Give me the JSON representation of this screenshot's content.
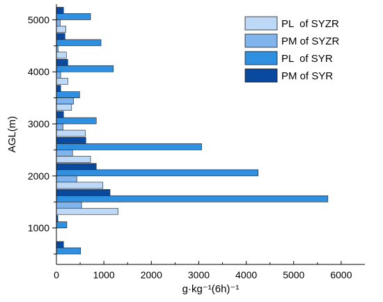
{
  "chart_data": {
    "type": "bar",
    "orientation": "horizontal",
    "xlabel": "g·kg⁻¹(6h)⁻¹",
    "ylabel": "AGL(m)",
    "xlim": [
      0,
      6500
    ],
    "ylim": [
      300,
      5300
    ],
    "xticks": [
      0,
      1000,
      2000,
      3000,
      4000,
      5000,
      6000
    ],
    "xtick_labels": [
      "0",
      "1000",
      "2000",
      "3000",
      "4000",
      "5000",
      "6000"
    ],
    "yticks": [
      1000,
      2000,
      3000,
      4000,
      5000
    ],
    "ytick_labels": [
      "1000",
      "2000",
      "3000",
      "4000",
      "5000"
    ],
    "grid": false,
    "legend_position": "top-right",
    "categories": [
      500,
      1000,
      1500,
      2000,
      2500,
      3000,
      3500,
      4000,
      4500,
      5000
    ],
    "series": [
      {
        "name": "PL  of SYZR",
        "color": "#bdd9f7",
        "values": [
          0,
          0,
          1300,
          980,
          720,
          610,
          320,
          240,
          210,
          200
        ]
      },
      {
        "name": "PM of SYZR",
        "color": "#7fb5ec",
        "values": [
          0,
          0,
          530,
          430,
          340,
          140,
          360,
          90,
          35,
          80
        ]
      },
      {
        "name": "PL  of SYR",
        "color": "#2f8fe0",
        "values": [
          510,
          220,
          5720,
          4250,
          3060,
          840,
          490,
          1200,
          940,
          720
        ]
      },
      {
        "name": "PM of SYR",
        "color": "#0a4a9e",
        "values": [
          150,
          30,
          1130,
          840,
          620,
          150,
          90,
          240,
          180,
          150
        ]
      }
    ]
  }
}
